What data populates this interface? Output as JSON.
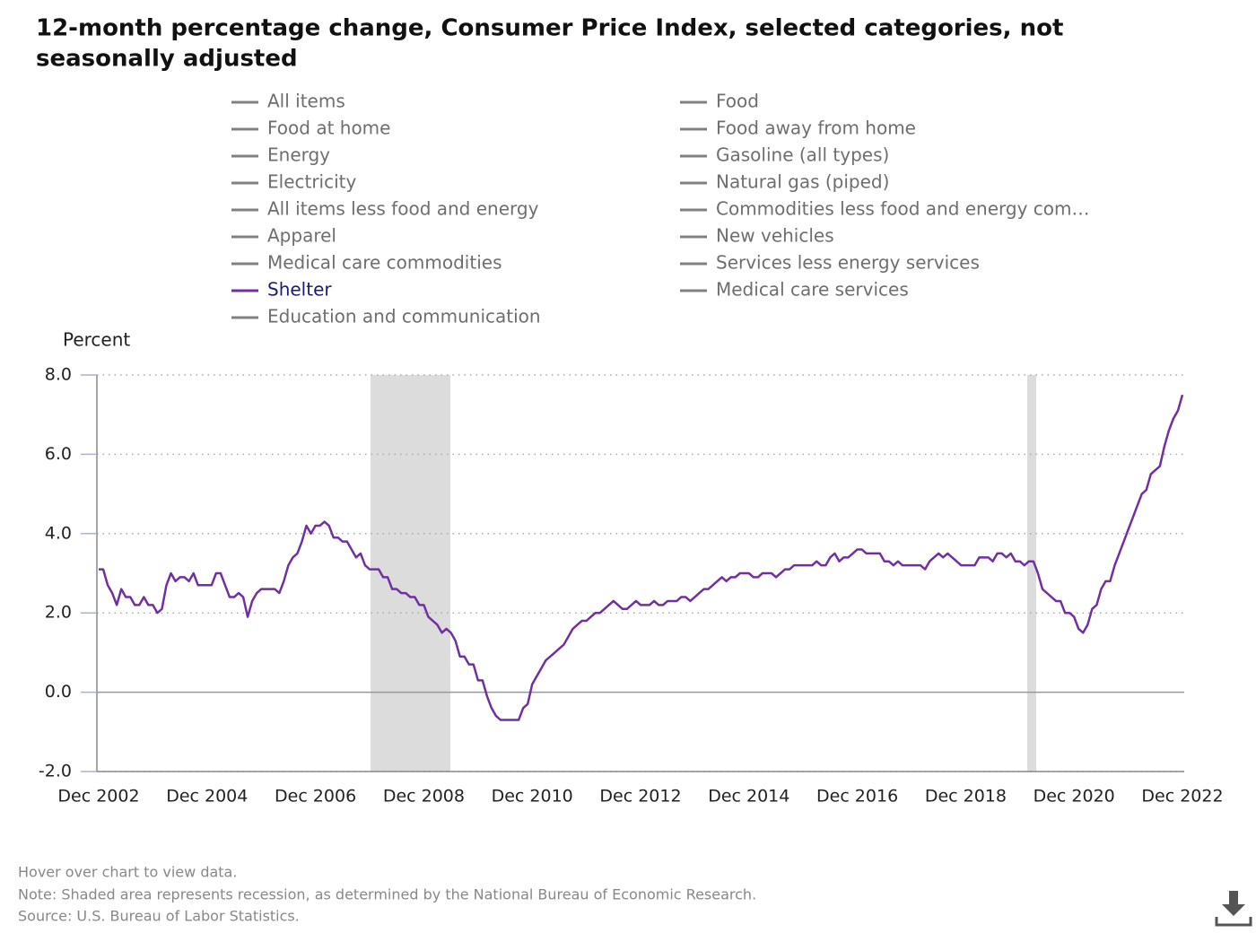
{
  "chart_data": {
    "type": "line",
    "title": [
      "12-month percentage change, Consumer Price Index, selected categories, not",
      "seasonally adjusted"
    ],
    "y_label": "Percent",
    "notes": [
      "Hover over chart to view data.",
      "Note: Shaded area represents recession, as determined by the National Bureau of Economic Research.",
      "Source: U.S. Bureau of Labor Statistics."
    ],
    "ylim": [
      -2,
      8
    ],
    "yticks": [
      {
        "value": -2,
        "label": "-2.0"
      },
      {
        "value": 0,
        "label": "0.0"
      },
      {
        "value": 2,
        "label": "2.0"
      },
      {
        "value": 4,
        "label": "4.0"
      },
      {
        "value": 6,
        "label": "6.0"
      },
      {
        "value": 8,
        "label": "8.0"
      }
    ],
    "grid": true,
    "categories": [
      "Dec 2002",
      null,
      null,
      null,
      null,
      null,
      null,
      null,
      null,
      null,
      null,
      null,
      null,
      null,
      null,
      null,
      null,
      null,
      null,
      null,
      null,
      null,
      null,
      null,
      "Dec 2004",
      null,
      null,
      null,
      null,
      null,
      null,
      null,
      null,
      null,
      null,
      null,
      null,
      null,
      null,
      null,
      null,
      null,
      null,
      null,
      null,
      null,
      null,
      null,
      "Dec 2006",
      null,
      null,
      null,
      null,
      null,
      null,
      null,
      null,
      null,
      null,
      null,
      null,
      null,
      null,
      null,
      null,
      null,
      null,
      null,
      null,
      null,
      null,
      null,
      "Dec 2008",
      null,
      null,
      null,
      null,
      null,
      null,
      null,
      null,
      null,
      null,
      null,
      null,
      null,
      null,
      null,
      null,
      null,
      null,
      null,
      null,
      null,
      null,
      null,
      "Dec 2010",
      null,
      null,
      null,
      null,
      null,
      null,
      null,
      null,
      null,
      null,
      null,
      null,
      null,
      null,
      null,
      null,
      null,
      null,
      null,
      null,
      null,
      null,
      null,
      "Dec 2012",
      null,
      null,
      null,
      null,
      null,
      null,
      null,
      null,
      null,
      null,
      null,
      null,
      null,
      null,
      null,
      null,
      null,
      null,
      null,
      null,
      null,
      null,
      null,
      "Dec 2014",
      null,
      null,
      null,
      null,
      null,
      null,
      null,
      null,
      null,
      null,
      null,
      null,
      null,
      null,
      null,
      null,
      null,
      null,
      null,
      null,
      null,
      null,
      null,
      "Dec 2016",
      null,
      null,
      null,
      null,
      null,
      null,
      null,
      null,
      null,
      null,
      null,
      null,
      null,
      null,
      null,
      null,
      null,
      null,
      null,
      null,
      null,
      null,
      null,
      "Dec 2018",
      null,
      null,
      null,
      null,
      null,
      null,
      null,
      null,
      null,
      null,
      null,
      null,
      null,
      null,
      null,
      null,
      null,
      null,
      null,
      null,
      null,
      null,
      null,
      "Dec 2020",
      null,
      null,
      null,
      null,
      null,
      null,
      null,
      null,
      null,
      null,
      null,
      null,
      null,
      null,
      null,
      null,
      null,
      null,
      null,
      null,
      null,
      null,
      null,
      "Dec 2022"
    ],
    "series": [
      {
        "name": "All items",
        "color": "#808080",
        "visible": false
      },
      {
        "name": "Food",
        "color": "#808080",
        "visible": false
      },
      {
        "name": "Food at home",
        "color": "#808080",
        "visible": false
      },
      {
        "name": "Food away from home",
        "color": "#808080",
        "visible": false
      },
      {
        "name": "Energy",
        "color": "#808080",
        "visible": false
      },
      {
        "name": "Gasoline (all types)",
        "color": "#808080",
        "visible": false
      },
      {
        "name": "Electricity",
        "color": "#808080",
        "visible": false
      },
      {
        "name": "Natural gas (piped)",
        "color": "#808080",
        "visible": false
      },
      {
        "name": "All items less food and energy",
        "color": "#808080",
        "visible": false
      },
      {
        "name": "Commodities less food and energy com…",
        "color": "#808080",
        "visible": false
      },
      {
        "name": "Apparel",
        "color": "#808080",
        "visible": false
      },
      {
        "name": "New vehicles",
        "color": "#808080",
        "visible": false
      },
      {
        "name": "Medical care commodities",
        "color": "#808080",
        "visible": false
      },
      {
        "name": "Services less energy services",
        "color": "#808080",
        "visible": false
      },
      {
        "name": "Shelter",
        "color": "#7030a0",
        "visible": true,
        "values": [
          3.1,
          3.1,
          2.7,
          2.5,
          2.2,
          2.6,
          2.4,
          2.4,
          2.2,
          2.2,
          2.4,
          2.2,
          2.2,
          2.0,
          2.1,
          2.7,
          3.0,
          2.8,
          2.9,
          2.9,
          2.8,
          3.0,
          2.7,
          2.7,
          2.7,
          2.7,
          3.0,
          3.0,
          2.7,
          2.4,
          2.4,
          2.5,
          2.4,
          1.9,
          2.3,
          2.5,
          2.6,
          2.6,
          2.6,
          2.6,
          2.5,
          2.8,
          3.2,
          3.4,
          3.5,
          3.8,
          4.2,
          4.0,
          4.2,
          4.2,
          4.3,
          4.2,
          3.9,
          3.9,
          3.8,
          3.8,
          3.6,
          3.4,
          3.5,
          3.2,
          3.1,
          3.1,
          3.1,
          2.9,
          2.9,
          2.6,
          2.6,
          2.5,
          2.5,
          2.4,
          2.4,
          2.2,
          2.2,
          1.9,
          1.8,
          1.7,
          1.5,
          1.6,
          1.5,
          1.3,
          0.9,
          0.9,
          0.7,
          0.7,
          0.3,
          0.3,
          -0.1,
          -0.4,
          -0.6,
          -0.7,
          -0.7,
          -0.7,
          -0.7,
          -0.7,
          -0.4,
          -0.3,
          0.2,
          0.4,
          0.6,
          0.8,
          0.9,
          1.0,
          1.1,
          1.2,
          1.4,
          1.6,
          1.7,
          1.8,
          1.8,
          1.9,
          2.0,
          2.0,
          2.1,
          2.2,
          2.3,
          2.2,
          2.1,
          2.1,
          2.2,
          2.3,
          2.2,
          2.2,
          2.2,
          2.3,
          2.2,
          2.2,
          2.3,
          2.3,
          2.3,
          2.4,
          2.4,
          2.3,
          2.4,
          2.5,
          2.6,
          2.6,
          2.7,
          2.8,
          2.9,
          2.8,
          2.9,
          2.9,
          3.0,
          3.0,
          3.0,
          2.9,
          2.9,
          3.0,
          3.0,
          3.0,
          2.9,
          3.0,
          3.1,
          3.1,
          3.2,
          3.2,
          3.2,
          3.2,
          3.2,
          3.3,
          3.2,
          3.2,
          3.4,
          3.5,
          3.3,
          3.4,
          3.4,
          3.5,
          3.6,
          3.6,
          3.5,
          3.5,
          3.5,
          3.5,
          3.3,
          3.3,
          3.2,
          3.3,
          3.2,
          3.2,
          3.2,
          3.2,
          3.2,
          3.1,
          3.3,
          3.4,
          3.5,
          3.4,
          3.5,
          3.4,
          3.3,
          3.2,
          3.2,
          3.2,
          3.2,
          3.4,
          3.4,
          3.4,
          3.3,
          3.5,
          3.5,
          3.4,
          3.5,
          3.3,
          3.3,
          3.2,
          3.3,
          3.3,
          3.0,
          2.6,
          2.5,
          2.4,
          2.3,
          2.3,
          2.0,
          2.0,
          1.9,
          1.6,
          1.5,
          1.7,
          2.1,
          2.2,
          2.6,
          2.8,
          2.8,
          3.2,
          3.5,
          3.8,
          4.1,
          4.4,
          4.7,
          5.0,
          5.1,
          5.5,
          5.6,
          5.7,
          6.2,
          6.6,
          6.9,
          7.1,
          7.5
        ]
      },
      {
        "name": "Medical care services",
        "color": "#808080",
        "visible": false
      },
      {
        "name": "Education and communication",
        "color": "#808080",
        "visible": false
      }
    ]
  }
}
